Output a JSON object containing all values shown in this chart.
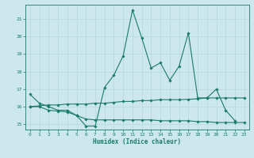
{
  "title": "",
  "xlabel": "Humidex (Indice chaleur)",
  "bg_color": "#cde8ec",
  "grid_color": "#b8d8dc",
  "line_color": "#1a7a6e",
  "xlim": [
    -0.5,
    23.5
  ],
  "ylim": [
    14.7,
    21.8
  ],
  "yticks": [
    15,
    16,
    17,
    18,
    19,
    20,
    21
  ],
  "xticks": [
    0,
    1,
    2,
    3,
    4,
    5,
    6,
    7,
    8,
    9,
    10,
    11,
    12,
    13,
    14,
    15,
    16,
    17,
    18,
    19,
    20,
    21,
    22,
    23
  ],
  "line1_x": [
    0,
    1,
    2,
    3,
    4,
    5,
    6,
    7,
    8,
    9,
    10,
    11,
    12,
    13,
    14,
    15,
    16,
    17,
    18,
    19,
    20,
    21,
    22
  ],
  "line1_y": [
    16.7,
    16.2,
    16.0,
    15.8,
    15.8,
    15.5,
    14.9,
    14.9,
    17.1,
    17.8,
    18.9,
    21.5,
    19.9,
    18.2,
    18.5,
    17.5,
    18.3,
    20.2,
    16.5,
    16.5,
    17.0,
    15.8,
    15.2
  ],
  "line2_x": [
    0,
    1,
    2,
    3,
    4,
    5,
    6,
    7,
    8,
    9,
    10,
    11,
    12,
    13,
    14,
    15,
    16,
    17,
    18,
    19,
    20,
    21,
    22,
    23
  ],
  "line2_y": [
    16.0,
    16.05,
    16.1,
    16.1,
    16.15,
    16.15,
    16.15,
    16.2,
    16.2,
    16.25,
    16.3,
    16.3,
    16.35,
    16.35,
    16.4,
    16.4,
    16.4,
    16.42,
    16.45,
    16.5,
    16.5,
    16.5,
    16.5,
    16.5
  ],
  "line3_x": [
    0,
    1,
    2,
    3,
    4,
    5,
    6,
    7,
    8,
    9,
    10,
    11,
    12,
    13,
    14,
    15,
    16,
    17,
    18,
    19,
    20,
    21,
    22,
    23
  ],
  "line3_y": [
    16.0,
    16.0,
    15.8,
    15.75,
    15.7,
    15.5,
    15.3,
    15.25,
    15.25,
    15.25,
    15.25,
    15.25,
    15.25,
    15.25,
    15.2,
    15.2,
    15.2,
    15.2,
    15.15,
    15.15,
    15.1,
    15.1,
    15.1,
    15.1
  ]
}
